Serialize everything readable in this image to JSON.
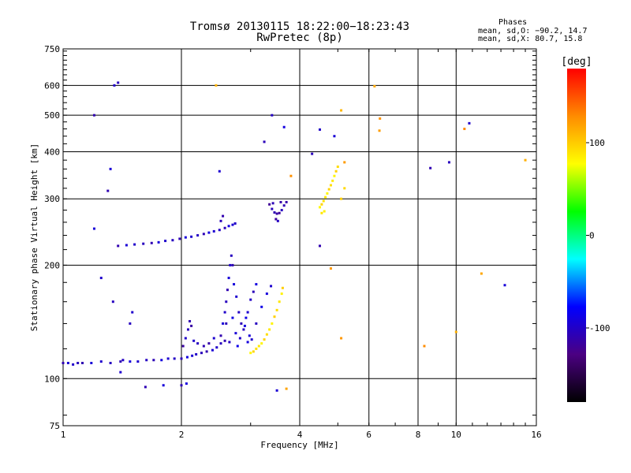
{
  "header": {
    "title_line1": "Tromsø 20130115 18:22:00−18:23:43",
    "title_line2": "RwPretec (8p)"
  },
  "phases": {
    "heading": "Phases",
    "line_o": "mean, sd,O: −90.2, 14.7",
    "line_x": "mean, sd,X:  80.7, 15.8"
  },
  "chart_data": {
    "type": "scatter",
    "title": "Tromsø 20130115 18:22:00−18:23:43",
    "subtitle": "RwPretec (8p)",
    "xlabel": "Frequency [MHz]",
    "ylabel": "Stationary phase Virtual Height [km]",
    "x_scale": "log",
    "y_scale": "log",
    "xlim": [
      1,
      16
    ],
    "ylim": [
      75,
      750
    ],
    "x_ticks": [
      1,
      2,
      4,
      6,
      8,
      10,
      16
    ],
    "y_ticks": [
      75,
      100,
      200,
      300,
      400,
      500,
      600,
      750
    ],
    "grid": true,
    "colorbar": {
      "label": "[deg]",
      "range": [
        -180,
        180
      ],
      "ticks": [
        100,
        0,
        -100
      ],
      "colors": [
        "#000000",
        "#4b0082",
        "#0000ff",
        "#00ffff",
        "#00ff00",
        "#ffff00",
        "#ff8c00",
        "#ff0000"
      ]
    },
    "series": [
      {
        "trace": "e-region",
        "phase": -100,
        "points": [
          [
            1.0,
            110
          ],
          [
            1.03,
            110
          ],
          [
            1.06,
            109
          ],
          [
            1.09,
            110
          ],
          [
            1.12,
            110
          ],
          [
            1.18,
            110
          ],
          [
            1.25,
            111
          ],
          [
            1.32,
            110
          ],
          [
            1.4,
            111
          ],
          [
            1.48,
            111
          ],
          [
            1.55,
            111
          ],
          [
            1.63,
            112
          ],
          [
            1.7,
            112
          ],
          [
            1.78,
            112
          ],
          [
            1.85,
            113
          ],
          [
            1.92,
            113
          ],
          [
            2.0,
            113
          ],
          [
            2.07,
            114
          ],
          [
            2.13,
            115
          ],
          [
            2.18,
            116
          ],
          [
            2.25,
            117
          ],
          [
            2.32,
            118
          ],
          [
            2.4,
            119
          ],
          [
            2.46,
            121
          ],
          [
            2.52,
            124
          ],
          [
            2.58,
            126
          ]
        ]
      },
      {
        "trace": "e-rise",
        "phase": -105,
        "points": [
          [
            2.02,
            122
          ],
          [
            2.05,
            128
          ],
          [
            2.08,
            135
          ],
          [
            2.1,
            142
          ],
          [
            2.12,
            138
          ],
          [
            2.15,
            126
          ],
          [
            2.2,
            124
          ],
          [
            2.28,
            122
          ],
          [
            2.35,
            124
          ],
          [
            2.42,
            128
          ]
        ]
      },
      {
        "trace": "es-cusp",
        "phase": -100,
        "points": [
          [
            2.52,
            130
          ],
          [
            2.55,
            140
          ],
          [
            2.58,
            150
          ],
          [
            2.6,
            160
          ],
          [
            2.62,
            172
          ],
          [
            2.64,
            185
          ],
          [
            2.66,
            200
          ],
          [
            2.68,
            212
          ],
          [
            2.7,
            200
          ],
          [
            2.72,
            178
          ],
          [
            2.76,
            165
          ],
          [
            2.8,
            150
          ],
          [
            2.84,
            140
          ],
          [
            2.9,
            138
          ],
          [
            2.95,
            150
          ],
          [
            3.0,
            162
          ],
          [
            3.05,
            170
          ],
          [
            3.1,
            178
          ]
        ]
      },
      {
        "trace": "e-cloud",
        "phase": -95,
        "points": [
          [
            2.6,
            140
          ],
          [
            2.7,
            145
          ],
          [
            2.75,
            132
          ],
          [
            2.82,
            128
          ],
          [
            2.88,
            135
          ],
          [
            2.92,
            145
          ],
          [
            2.98,
            130
          ],
          [
            3.02,
            127
          ],
          [
            3.1,
            140
          ],
          [
            3.2,
            155
          ],
          [
            3.3,
            168
          ],
          [
            3.38,
            176
          ],
          [
            2.65,
            125
          ],
          [
            2.78,
            122
          ],
          [
            2.95,
            125
          ]
        ]
      },
      {
        "trace": "f1-region",
        "phase": -100,
        "points": [
          [
            1.38,
            225
          ],
          [
            1.45,
            226
          ],
          [
            1.52,
            227
          ],
          [
            1.6,
            228
          ],
          [
            1.68,
            229
          ],
          [
            1.75,
            230
          ],
          [
            1.82,
            232
          ],
          [
            1.9,
            233
          ],
          [
            1.98,
            235
          ],
          [
            2.05,
            237
          ],
          [
            2.12,
            238
          ],
          [
            2.2,
            240
          ],
          [
            2.28,
            242
          ],
          [
            2.35,
            244
          ],
          [
            2.42,
            246
          ],
          [
            2.5,
            248
          ],
          [
            2.58,
            251
          ],
          [
            2.64,
            254
          ],
          [
            2.7,
            256
          ],
          [
            2.74,
            258
          ],
          [
            2.52,
            262
          ],
          [
            2.55,
            270
          ]
        ]
      },
      {
        "trace": "f-x-blob",
        "phase": -110,
        "points": [
          [
            3.35,
            290
          ],
          [
            3.4,
            282
          ],
          [
            3.45,
            276
          ],
          [
            3.5,
            274
          ],
          [
            3.55,
            275
          ],
          [
            3.6,
            280
          ],
          [
            3.65,
            288
          ],
          [
            3.7,
            294
          ],
          [
            3.48,
            265
          ],
          [
            3.52,
            262
          ],
          [
            3.42,
            292
          ],
          [
            3.58,
            294
          ]
        ]
      },
      {
        "trace": "e-o-mode",
        "phase": 90,
        "points": [
          [
            3.0,
            117
          ],
          [
            3.05,
            118
          ],
          [
            3.1,
            120
          ],
          [
            3.15,
            122
          ],
          [
            3.2,
            124
          ],
          [
            3.25,
            127
          ],
          [
            3.3,
            131
          ],
          [
            3.35,
            135
          ],
          [
            3.4,
            140
          ],
          [
            3.45,
            146
          ],
          [
            3.5,
            152
          ],
          [
            3.55,
            160
          ],
          [
            3.6,
            168
          ],
          [
            3.62,
            174
          ]
        ]
      },
      {
        "trace": "f-o-mode",
        "phase": 90,
        "points": [
          [
            4.5,
            285
          ],
          [
            4.55,
            290
          ],
          [
            4.6,
            296
          ],
          [
            4.65,
            303
          ],
          [
            4.7,
            310
          ],
          [
            4.75,
            318
          ],
          [
            4.8,
            326
          ],
          [
            4.85,
            335
          ],
          [
            4.9,
            345
          ],
          [
            4.95,
            355
          ],
          [
            5.0,
            365
          ],
          [
            4.55,
            275
          ],
          [
            4.62,
            278
          ],
          [
            5.1,
            300
          ],
          [
            5.2,
            320
          ]
        ]
      },
      {
        "trace": "noise",
        "phase": -100,
        "points": [
          [
            1.2,
            500
          ],
          [
            1.32,
            360
          ],
          [
            1.35,
            600
          ],
          [
            1.38,
            610
          ],
          [
            1.3,
            315
          ],
          [
            1.2,
            250
          ],
          [
            1.25,
            185
          ],
          [
            1.34,
            160
          ],
          [
            1.62,
            95
          ],
          [
            1.8,
            96
          ],
          [
            1.4,
            104
          ],
          [
            1.42,
            112
          ],
          [
            2.0,
            96
          ],
          [
            2.06,
            97
          ],
          [
            2.5,
            355
          ],
          [
            3.4,
            500
          ],
          [
            3.25,
            425
          ],
          [
            3.65,
            465
          ],
          [
            3.5,
            93
          ],
          [
            4.5,
            458
          ],
          [
            4.3,
            395
          ],
          [
            4.5,
            225
          ],
          [
            4.9,
            440
          ],
          [
            10.8,
            476
          ],
          [
            9.6,
            375
          ],
          [
            8.6,
            362
          ],
          [
            13.3,
            177
          ],
          [
            1.5,
            150
          ],
          [
            1.48,
            140
          ]
        ]
      },
      {
        "trace": "noise-warm",
        "phase": 120,
        "points": [
          [
            5.1,
            515
          ],
          [
            6.4,
            490
          ],
          [
            6.38,
            455
          ],
          [
            6.2,
            597
          ],
          [
            2.45,
            600
          ],
          [
            3.8,
            345
          ],
          [
            5.2,
            375
          ],
          [
            11.6,
            190
          ],
          [
            10.0,
            133
          ],
          [
            8.3,
            122
          ],
          [
            4.8,
            196
          ],
          [
            3.7,
            94
          ],
          [
            15.0,
            380
          ],
          [
            10.5,
            460
          ],
          [
            5.1,
            128
          ]
        ]
      }
    ]
  }
}
